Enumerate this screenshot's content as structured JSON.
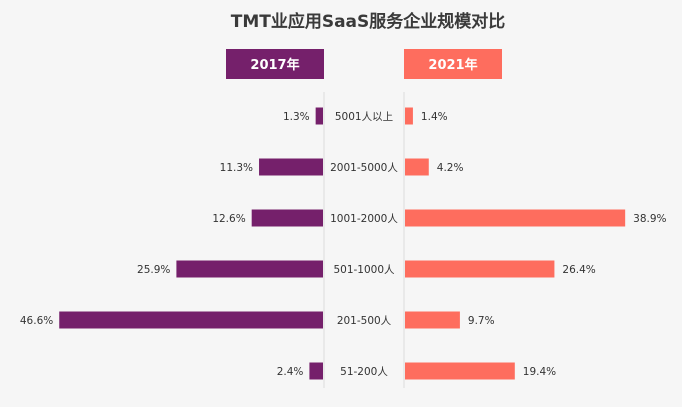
{
  "chart_data": {
    "type": "bar",
    "title": "TMT业应用SaaS服务企业规模对比",
    "categories": [
      "5001人以上",
      "2001-5000人",
      "1001-2000人",
      "501-1000人",
      "201-500人",
      "51-200人"
    ],
    "series": [
      {
        "name": "2017年",
        "color": "#75206b",
        "values": [
          1.3,
          11.3,
          12.6,
          25.9,
          46.6,
          2.4
        ],
        "labels": [
          "1.3%",
          "11.3%",
          "12.6%",
          "25.9%",
          "46.6%",
          "2.4%"
        ]
      },
      {
        "name": "2021年",
        "color": "#fe6d5e",
        "values": [
          1.4,
          4.2,
          38.9,
          26.4,
          9.7,
          19.4
        ],
        "labels": [
          "1.4%",
          "4.2%",
          "38.9%",
          "26.4%",
          "9.7%",
          "19.4%"
        ]
      }
    ],
    "unit": "%",
    "xlim": [
      0,
      50
    ]
  }
}
